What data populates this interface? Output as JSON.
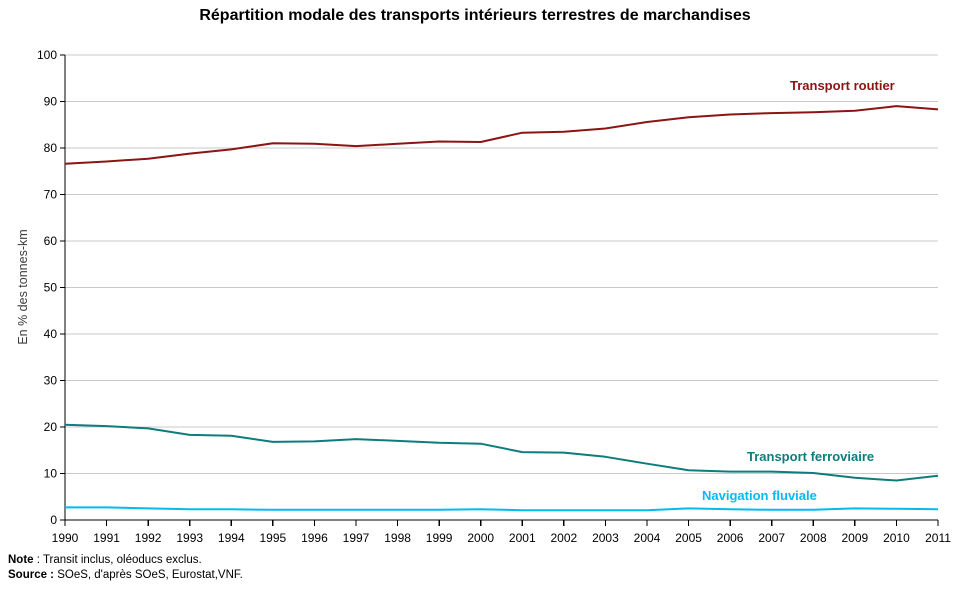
{
  "title": "Répartition modale des transports intérieurs terrestres de marchandises",
  "notes": {
    "note_label": "Note",
    "note_rest": " : Transit inclus, oléoducs exclus.",
    "source_label": "Source :",
    "source_rest": " SOeS, d'après SOeS, Eurostat,VNF."
  },
  "colors": {
    "road": "#8B1414",
    "rail": "#0E7C7C",
    "river": "#00BDEE",
    "gridline": "#C9C9C9",
    "axis": "#000000"
  },
  "chart_data": {
    "type": "line",
    "title": "Répartition modale des transports intérieurs terrestres de marchandises",
    "xlabel": "",
    "ylabel": "En % des tonnes-km",
    "ylim": [
      0,
      100
    ],
    "ytick_step": 10,
    "grid": true,
    "legend_position": "inline-labels",
    "x": [
      1990,
      1991,
      1992,
      1993,
      1994,
      1995,
      1996,
      1997,
      1998,
      1999,
      2000,
      2001,
      2002,
      2003,
      2004,
      2005,
      2006,
      2007,
      2008,
      2009,
      2010,
      2011
    ],
    "series": [
      {
        "key": "road",
        "name": "Transport routier",
        "color": "#8B1414",
        "values": [
          76.6,
          77.1,
          77.7,
          78.8,
          79.7,
          81.0,
          80.9,
          80.4,
          80.9,
          81.4,
          81.3,
          83.3,
          83.5,
          84.2,
          85.6,
          86.6,
          87.2,
          87.5,
          87.7,
          88.0,
          89.0,
          88.3
        ]
      },
      {
        "key": "rail",
        "name": "Transport ferroviaire",
        "color": "#0E7C7C",
        "values": [
          20.5,
          20.2,
          19.7,
          18.3,
          18.1,
          16.8,
          16.9,
          17.4,
          17.0,
          16.6,
          16.4,
          14.6,
          14.5,
          13.6,
          12.1,
          10.7,
          10.4,
          10.4,
          10.1,
          9.1,
          8.5,
          9.5
        ]
      },
      {
        "key": "river",
        "name": "Navigation fluviale",
        "color": "#00BDEE",
        "values": [
          2.7,
          2.7,
          2.5,
          2.3,
          2.3,
          2.2,
          2.2,
          2.2,
          2.2,
          2.2,
          2.3,
          2.1,
          2.1,
          2.1,
          2.1,
          2.5,
          2.3,
          2.2,
          2.2,
          2.5,
          2.4,
          2.3
        ]
      }
    ]
  }
}
